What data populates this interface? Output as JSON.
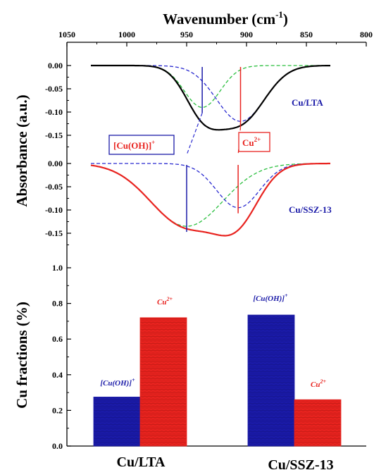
{
  "colors": {
    "black": "#000000",
    "blue": "#1a1aa8",
    "red": "#e8231f",
    "green": "#2bbf3f",
    "dashBlue": "#2a2ad0",
    "dashRed": "#e8231f"
  },
  "chart_data": [
    {
      "type": "line",
      "title": "",
      "xlabel_top": "Wavenumber (cm",
      "xlabel_top_sup": "-1",
      "xlabel_top_end": ")",
      "ylabel": "Absorbance (a.u.)",
      "x_reversed": true,
      "xlim": [
        1050,
        800
      ],
      "x_ticks": [
        "1050",
        "1000",
        "950",
        "900",
        "850",
        "800"
      ],
      "y_ticks_upper": [
        "0.00",
        "-0.05",
        "-0.10",
        "-0.15"
      ],
      "y_ticks_lower": [
        "0.00",
        "-0.05",
        "-0.10",
        "-0.15"
      ],
      "panels": [
        {
          "name": "Cu/LTA",
          "ylim": [
            -0.17,
            0.02
          ],
          "peaks": [
            {
              "label": "[Cu(OH)]",
              "label_sup": "+",
              "center": 937,
              "amplitude": -0.09,
              "width": 15
            },
            {
              "label": "Cu",
              "label_sup": "2+",
              "center": 905,
              "amplitude": -0.12,
              "width": 20
            }
          ]
        },
        {
          "name": "Cu/SSZ-13",
          "ylim": [
            -0.17,
            0.02
          ],
          "peaks": [
            {
              "label": "[Cu(OH)]",
              "label_sup": "+",
              "center": 950,
              "amplitude": -0.135,
              "width": 30
            },
            {
              "label": "Cu",
              "label_sup": "2+",
              "center": 907,
              "amplitude": -0.095,
              "width": 18
            }
          ]
        }
      ]
    },
    {
      "type": "bar",
      "title": "",
      "ylabel": "Cu fractions (%)",
      "ylim": [
        0,
        1.0
      ],
      "y_ticks": [
        "0.0",
        "0.2",
        "0.4",
        "0.6",
        "0.8",
        "1.0"
      ],
      "categories": [
        "Cu/LTA",
        "Cu/SSZ-13"
      ],
      "series": [
        {
          "name": "[Cu(OH)]",
          "name_sup": "+",
          "values": [
            0.275,
            0.735
          ],
          "color": "#1a1aa8"
        },
        {
          "name": "Cu",
          "name_sup": "2+",
          "values": [
            0.72,
            0.26
          ],
          "color": "#e8231f"
        }
      ]
    }
  ]
}
